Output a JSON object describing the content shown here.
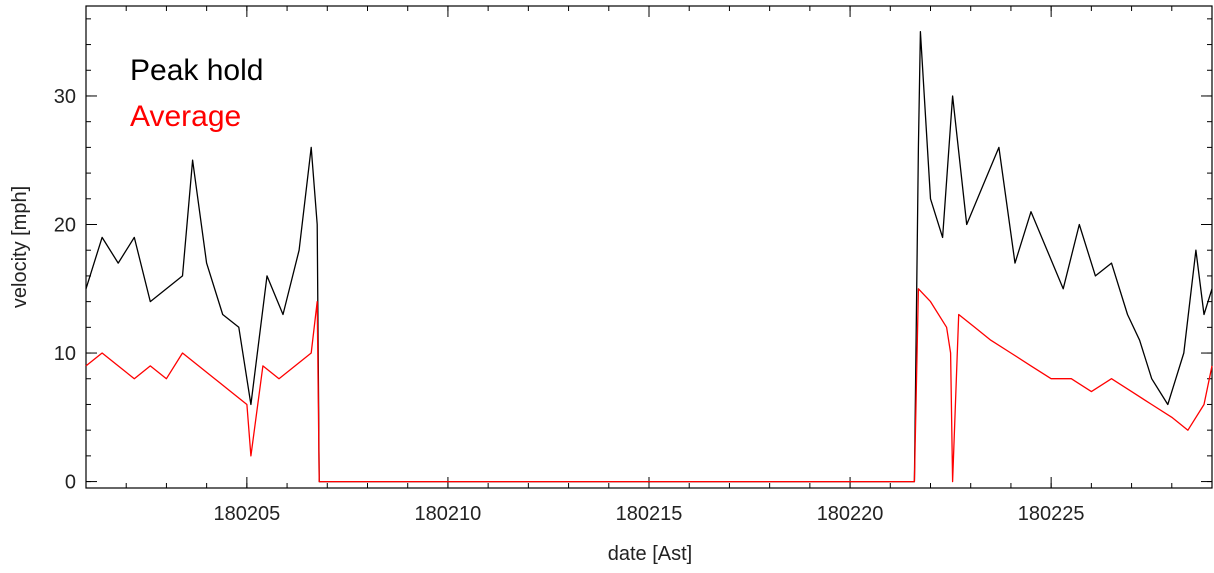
{
  "chart_data": {
    "type": "line",
    "title": "",
    "xlabel": "date [Ast]",
    "ylabel": "velocity [mph]",
    "xlim": [
      180201,
      180229
    ],
    "ylim": [
      -0.5,
      37
    ],
    "x_ticks": [
      180205,
      180210,
      180215,
      180220,
      180225
    ],
    "x_tick_labels": [
      "180205",
      "180210",
      "180215",
      "180220",
      "180225"
    ],
    "y_ticks": [
      0,
      10,
      20,
      30
    ],
    "y_tick_labels": [
      "0",
      "10",
      "20",
      "30"
    ],
    "grid": false,
    "legend_position": "top-left",
    "series": [
      {
        "name": "Peak hold",
        "color": "#000000",
        "x": [
          180201.0,
          180201.4,
          180201.8,
          180202.2,
          180202.6,
          180203.0,
          180203.4,
          180203.65,
          180204.0,
          180204.4,
          180204.8,
          180205.1,
          180205.5,
          180205.9,
          180206.3,
          180206.6,
          180206.75,
          180206.8,
          180221.6,
          180221.7,
          180221.75,
          180222.0,
          180222.3,
          180222.55,
          180222.9,
          180223.3,
          180223.7,
          180224.1,
          180224.5,
          180224.9,
          180225.3,
          180225.7,
          180226.1,
          180226.5,
          180226.9,
          180227.2,
          180227.5,
          180227.9,
          180228.3,
          180228.6,
          180228.8,
          180229.0
        ],
        "y": [
          15,
          19,
          17,
          19,
          14,
          15,
          16,
          25,
          17,
          13,
          12,
          6,
          16,
          13,
          18,
          26,
          20,
          0,
          0,
          26,
          35,
          22,
          19,
          30,
          20,
          23,
          26,
          17,
          21,
          18,
          15,
          20,
          16,
          17,
          13,
          11,
          8,
          6,
          10,
          18,
          13,
          15
        ]
      },
      {
        "name": "Average",
        "color": "#ff0000",
        "x": [
          180201.0,
          180201.4,
          180201.8,
          180202.2,
          180202.6,
          180203.0,
          180203.4,
          180203.8,
          180204.2,
          180204.6,
          180205.0,
          180205.1,
          180205.4,
          180205.8,
          180206.2,
          180206.6,
          180206.75,
          180206.8,
          180221.6,
          180221.7,
          180222.0,
          180222.4,
          180222.5,
          180222.55,
          180222.7,
          180223.1,
          180223.5,
          180224.0,
          180224.5,
          180225.0,
          180225.5,
          180226.0,
          180226.5,
          180227.0,
          180227.5,
          180228.0,
          180228.4,
          180228.8,
          180229.0
        ],
        "y": [
          9,
          10,
          9,
          8,
          9,
          8,
          10,
          9,
          8,
          7,
          6,
          2,
          9,
          8,
          9,
          10,
          14,
          0,
          0,
          15,
          14,
          12,
          10,
          0,
          13,
          12,
          11,
          10,
          9,
          8,
          8,
          7,
          8,
          7,
          6,
          5,
          4,
          6,
          9
        ]
      }
    ]
  }
}
